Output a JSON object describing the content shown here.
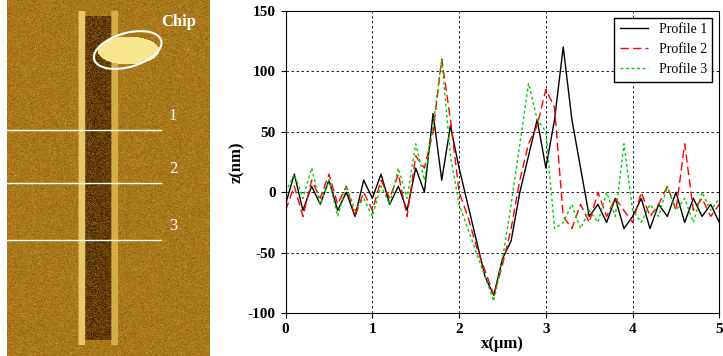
{
  "chart_data": {
    "type": "line",
    "xlabel": "x(μm)",
    "ylabel": "z(nm)",
    "x": [
      0.0,
      0.1,
      0.2,
      0.3,
      0.4,
      0.5,
      0.6,
      0.7,
      0.8,
      0.9,
      1.0,
      1.1,
      1.2,
      1.3,
      1.4,
      1.5,
      1.6,
      1.7,
      1.8,
      1.9,
      2.0,
      2.1,
      2.2,
      2.3,
      2.4,
      2.5,
      2.6,
      2.7,
      2.8,
      2.9,
      3.0,
      3.1,
      3.2,
      3.3,
      3.4,
      3.5,
      3.6,
      3.7,
      3.8,
      3.9,
      4.0,
      4.1,
      4.2,
      4.3,
      4.4,
      4.5,
      4.6,
      4.7,
      4.8,
      4.9,
      5.0
    ],
    "series": [
      {
        "name": "Profile 1",
        "color": "#000000",
        "line_style": "solid",
        "values": [
          -10,
          15,
          -15,
          5,
          -10,
          10,
          -15,
          0,
          -20,
          10,
          -5,
          15,
          -10,
          5,
          -15,
          20,
          0,
          65,
          10,
          55,
          20,
          -10,
          -40,
          -70,
          -85,
          -55,
          -40,
          0,
          30,
          60,
          20,
          60,
          120,
          60,
          20,
          -20,
          -10,
          -25,
          -5,
          -30,
          -20,
          -5,
          -30,
          -10,
          -20,
          0,
          -25,
          -5,
          -20,
          -10,
          -25
        ]
      },
      {
        "name": "Profile 2",
        "color": "#ff0000",
        "line_style": "dashed",
        "values": [
          -15,
          5,
          -20,
          10,
          -5,
          15,
          -10,
          5,
          -20,
          0,
          -15,
          10,
          -5,
          15,
          -20,
          30,
          20,
          50,
          110,
          60,
          0,
          -20,
          -45,
          -65,
          -85,
          -60,
          -30,
          10,
          40,
          55,
          85,
          70,
          -20,
          -30,
          -10,
          -25,
          0,
          -20,
          -5,
          -15,
          -25,
          0,
          -20,
          -10,
          5,
          -15,
          40,
          -15,
          -5,
          -20,
          -10
        ]
      },
      {
        "name": "Profile 3",
        "color": "#00cc00",
        "line_style": "dotted",
        "values": [
          0,
          15,
          -5,
          20,
          -10,
          10,
          -20,
          5,
          -15,
          -5,
          -20,
          5,
          -10,
          20,
          -5,
          40,
          10,
          55,
          110,
          30,
          -10,
          -30,
          -50,
          -70,
          -90,
          -55,
          -10,
          40,
          90,
          60,
          50,
          -30,
          -25,
          -10,
          -30,
          -15,
          -25,
          0,
          -20,
          40,
          -15,
          -25,
          -10,
          -20,
          5,
          -15,
          -5,
          -25,
          0,
          -15,
          -5
        ]
      }
    ],
    "xlim": [
      0,
      5
    ],
    "ylim": [
      -100,
      150
    ],
    "xticks": [
      0,
      1,
      2,
      3,
      4,
      5
    ],
    "yticks": [
      -100,
      -50,
      0,
      50,
      100,
      150
    ],
    "grid": true,
    "legend": "upper right"
  },
  "image": {
    "chip_label": "Chip",
    "line_labels": [
      "1",
      "2",
      "3"
    ]
  }
}
